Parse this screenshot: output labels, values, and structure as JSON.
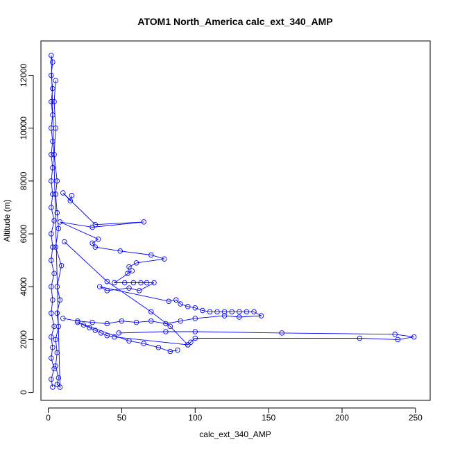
{
  "chart_data": {
    "type": "scatter",
    "title": "ATOM1 North_America calc_ext_340_AMP",
    "xlabel": "calc_ext_340_AMP",
    "ylabel": "Altitude (m)",
    "xlim": [
      -5,
      260
    ],
    "ylim": [
      -300,
      13300
    ],
    "xticks": [
      0,
      50,
      100,
      150,
      200,
      250
    ],
    "yticks": [
      0,
      2000,
      4000,
      6000,
      8000,
      10000,
      12000
    ],
    "grid": false,
    "connected_lines": true,
    "color": "#0000ff",
    "marker": "open-circle",
    "series": [
      {
        "values": [
          {
            "x": 3,
            "y": 200
          },
          {
            "x": 2,
            "y": 500
          },
          {
            "x": 4,
            "y": 900
          },
          {
            "x": 2,
            "y": 1300
          },
          {
            "x": 3,
            "y": 1700
          },
          {
            "x": 2,
            "y": 2100
          },
          {
            "x": 4,
            "y": 2500
          },
          {
            "x": 2,
            "y": 3000
          },
          {
            "x": 3,
            "y": 3500
          },
          {
            "x": 2,
            "y": 4000
          },
          {
            "x": 4,
            "y": 4500
          },
          {
            "x": 2,
            "y": 5000
          },
          {
            "x": 3,
            "y": 5500
          },
          {
            "x": 2,
            "y": 6000
          },
          {
            "x": 4,
            "y": 6500
          },
          {
            "x": 2,
            "y": 7000
          },
          {
            "x": 3,
            "y": 7500
          },
          {
            "x": 2,
            "y": 8000
          },
          {
            "x": 3,
            "y": 8500
          },
          {
            "x": 2,
            "y": 9000
          },
          {
            "x": 3,
            "y": 9500
          },
          {
            "x": 2,
            "y": 10000
          },
          {
            "x": 3,
            "y": 10500
          },
          {
            "x": 2,
            "y": 11000
          },
          {
            "x": 3,
            "y": 11500
          },
          {
            "x": 2,
            "y": 12000
          },
          {
            "x": 3,
            "y": 12500
          },
          {
            "x": 2,
            "y": 12750
          },
          {
            "x": 8,
            "y": 200
          },
          {
            "x": 6,
            "y": 300
          },
          {
            "x": 7,
            "y": 550
          },
          {
            "x": 5,
            "y": 1000
          },
          {
            "x": 6,
            "y": 1500
          },
          {
            "x": 5,
            "y": 2000
          },
          {
            "x": 7,
            "y": 2500
          },
          {
            "x": 6,
            "y": 3000
          },
          {
            "x": 8,
            "y": 3500
          },
          {
            "x": 6,
            "y": 4000
          },
          {
            "x": 9,
            "y": 4800
          },
          {
            "x": 5,
            "y": 5500
          },
          {
            "x": 7,
            "y": 6200
          },
          {
            "x": 6,
            "y": 6800
          },
          {
            "x": 5,
            "y": 7500
          },
          {
            "x": 6,
            "y": 8000
          },
          {
            "x": 4,
            "y": 9000
          },
          {
            "x": 5,
            "y": 10000
          },
          {
            "x": 4,
            "y": 11000
          },
          {
            "x": 5,
            "y": 11800
          }
        ]
      },
      {
        "values": [
          {
            "x": 16,
            "y": 7450
          },
          {
            "x": 15,
            "y": 7250
          },
          {
            "x": 10,
            "y": 7550
          },
          {
            "x": 32,
            "y": 6350
          },
          {
            "x": 65,
            "y": 6450
          },
          {
            "x": 30,
            "y": 6250
          },
          {
            "x": 8,
            "y": 6450
          },
          {
            "x": 34,
            "y": 5800
          },
          {
            "x": 30,
            "y": 5650
          },
          {
            "x": 32,
            "y": 5500
          },
          {
            "x": 49,
            "y": 5350
          },
          {
            "x": 70,
            "y": 5200
          },
          {
            "x": 79,
            "y": 5050
          },
          {
            "x": 60,
            "y": 4900
          },
          {
            "x": 55,
            "y": 4750
          },
          {
            "x": 54,
            "y": 4500
          },
          {
            "x": 57,
            "y": 4600
          },
          {
            "x": 45,
            "y": 4150
          },
          {
            "x": 52,
            "y": 4150
          },
          {
            "x": 58,
            "y": 4150
          },
          {
            "x": 63,
            "y": 4150
          },
          {
            "x": 67,
            "y": 4150
          },
          {
            "x": 72,
            "y": 4150
          },
          {
            "x": 62,
            "y": 3850
          },
          {
            "x": 55,
            "y": 3950
          },
          {
            "x": 40,
            "y": 3850
          },
          {
            "x": 35,
            "y": 4000
          },
          {
            "x": 82,
            "y": 3450
          },
          {
            "x": 87,
            "y": 3500
          },
          {
            "x": 90,
            "y": 3350
          },
          {
            "x": 95,
            "y": 3250
          },
          {
            "x": 100,
            "y": 3200
          },
          {
            "x": 105,
            "y": 3100
          },
          {
            "x": 110,
            "y": 3050
          },
          {
            "x": 115,
            "y": 3050
          },
          {
            "x": 120,
            "y": 3050
          },
          {
            "x": 125,
            "y": 3050
          },
          {
            "x": 130,
            "y": 3050
          },
          {
            "x": 135,
            "y": 3050
          },
          {
            "x": 140,
            "y": 3050
          },
          {
            "x": 145,
            "y": 2900
          },
          {
            "x": 130,
            "y": 2850
          },
          {
            "x": 120,
            "y": 2900
          },
          {
            "x": 100,
            "y": 2800
          },
          {
            "x": 90,
            "y": 2700
          },
          {
            "x": 80,
            "y": 2600
          },
          {
            "x": 70,
            "y": 2700
          },
          {
            "x": 60,
            "y": 2650
          },
          {
            "x": 50,
            "y": 2700
          },
          {
            "x": 40,
            "y": 2600
          },
          {
            "x": 30,
            "y": 2650
          },
          {
            "x": 20,
            "y": 2700
          },
          {
            "x": 10,
            "y": 2800
          }
        ]
      },
      {
        "values": [
          {
            "x": 48,
            "y": 2250
          },
          {
            "x": 80,
            "y": 2300
          },
          {
            "x": 100,
            "y": 2300
          },
          {
            "x": 159,
            "y": 2250
          },
          {
            "x": 236,
            "y": 2200
          },
          {
            "x": 249,
            "y": 2100
          },
          {
            "x": 238,
            "y": 2000
          },
          {
            "x": 212,
            "y": 2050
          },
          {
            "x": 100,
            "y": 2050
          },
          {
            "x": 97,
            "y": 1900
          },
          {
            "x": 95,
            "y": 1800
          },
          {
            "x": 45,
            "y": 2100
          },
          {
            "x": 40,
            "y": 2150
          },
          {
            "x": 36,
            "y": 2250
          },
          {
            "x": 32,
            "y": 2350
          },
          {
            "x": 28,
            "y": 2450
          },
          {
            "x": 24,
            "y": 2550
          },
          {
            "x": 20,
            "y": 2650
          },
          {
            "x": 55,
            "y": 1950
          },
          {
            "x": 65,
            "y": 1850
          },
          {
            "x": 75,
            "y": 1700
          },
          {
            "x": 83,
            "y": 1550
          },
          {
            "x": 88,
            "y": 1600
          }
        ]
      },
      {
        "values": [
          {
            "x": 11,
            "y": 5700
          },
          {
            "x": 40,
            "y": 4200
          },
          {
            "x": 70,
            "y": 3050
          },
          {
            "x": 83,
            "y": 2500
          },
          {
            "x": 95,
            "y": 1800
          }
        ]
      }
    ]
  }
}
